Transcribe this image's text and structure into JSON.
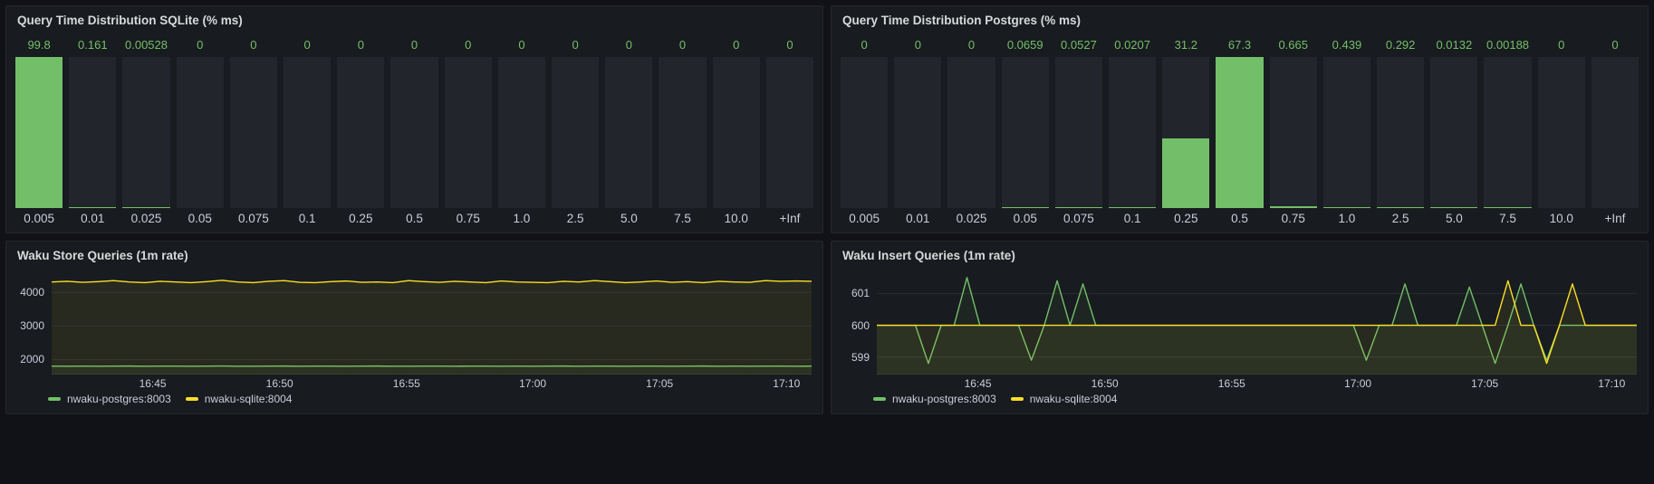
{
  "theme": {
    "background": "#111217",
    "panel_bg": "#181b1f",
    "panel_border": "#25272d",
    "text": "#ccccdc",
    "title_color": "#d8d9da",
    "green": "#73bf69",
    "yellow": "#fade2a",
    "bar_track": "#22262c",
    "grid": "rgba(204,204,220,0.10)",
    "axis_line": "rgba(204,204,220,0.16)"
  },
  "panels": {
    "sqlite": {
      "title": "Query Time Distribution SQLite (% ms)",
      "chart_data": {
        "type": "bar",
        "orientation": "vertical",
        "bar_color": "#73bf69",
        "categories": [
          "0.005",
          "0.01",
          "0.025",
          "0.05",
          "0.075",
          "0.1",
          "0.25",
          "0.5",
          "0.75",
          "1.0",
          "2.5",
          "5.0",
          "7.5",
          "10.0",
          "+Inf"
        ],
        "values": [
          99.8,
          0.161,
          0.00528,
          0,
          0,
          0,
          0,
          0,
          0,
          0,
          0,
          0,
          0,
          0,
          0
        ],
        "labels": [
          "99.8",
          "0.161",
          "0.00528",
          "0",
          "0",
          "0",
          "0",
          "0",
          "0",
          "0",
          "0",
          "0",
          "0",
          "0",
          "0"
        ]
      }
    },
    "postgres": {
      "title": "Query Time Distribution Postgres (% ms)",
      "chart_data": {
        "type": "bar",
        "orientation": "vertical",
        "bar_color": "#73bf69",
        "categories": [
          "0.005",
          "0.01",
          "0.025",
          "0.05",
          "0.075",
          "0.1",
          "0.25",
          "0.5",
          "0.75",
          "1.0",
          "2.5",
          "5.0",
          "7.5",
          "10.0",
          "+Inf"
        ],
        "values": [
          0,
          0,
          0,
          0.0659,
          0.0527,
          0.0207,
          31.2,
          67.3,
          0.665,
          0.439,
          0.292,
          0.0132,
          0.00188,
          0,
          0
        ],
        "labels": [
          "0",
          "0",
          "0",
          "0.0659",
          "0.0527",
          "0.0207",
          "31.2",
          "67.3",
          "0.665",
          "0.439",
          "0.292",
          "0.0132",
          "0.00188",
          "0",
          "0"
        ]
      }
    },
    "store": {
      "title": "Waku Store Queries (1m rate)",
      "chart_data": {
        "type": "line",
        "ylim": [
          1550,
          4680
        ],
        "y_ticks": [
          2000,
          3000,
          4000
        ],
        "x_ticks": [
          {
            "label": "16:45",
            "pos": 0.133
          },
          {
            "label": "16:50",
            "pos": 0.3
          },
          {
            "label": "16:55",
            "pos": 0.467
          },
          {
            "label": "17:00",
            "pos": 0.633
          },
          {
            "label": "17:05",
            "pos": 0.8
          },
          {
            "label": "17:10",
            "pos": 0.967
          }
        ],
        "legend_position": "bottom",
        "series": [
          {
            "name": "nwaku-postgres:8003",
            "color": "#73bf69",
            "values": [
              1800,
              1797,
              1802,
              1799,
              1801,
              1803,
              1798,
              1800,
              1802,
              1797,
              1800,
              1804,
              1799,
              1797,
              1801,
              1803,
              1798,
              1800,
              1802,
              1798,
              1800,
              1803,
              1799,
              1797,
              1801,
              1800,
              1798,
              1802,
              1800,
              1797,
              1802,
              1799,
              1800,
              1803,
              1798,
              1800,
              1801,
              1797,
              1800,
              1802,
              1798,
              1800,
              1803,
              1799,
              1800,
              1797,
              1801,
              1800,
              1799,
              1800
            ]
          },
          {
            "name": "nwaku-sqlite:8004",
            "color": "#fade2a",
            "values": [
              4310,
              4330,
              4300,
              4320,
              4350,
              4310,
              4290,
              4330,
              4310,
              4290,
              4320,
              4360,
              4310,
              4290,
              4330,
              4350,
              4300,
              4290,
              4320,
              4340,
              4300,
              4310,
              4290,
              4350,
              4320,
              4300,
              4330,
              4310,
              4290,
              4340,
              4310,
              4300,
              4290,
              4330,
              4310,
              4350,
              4320,
              4290,
              4310,
              4340,
              4300,
              4320,
              4290,
              4330,
              4310,
              4300,
              4350,
              4330,
              4340,
              4330
            ]
          }
        ]
      }
    },
    "insert": {
      "title": "Waku Insert Queries (1m rate)",
      "chart_data": {
        "type": "line",
        "ylim": [
          598.45,
          601.75
        ],
        "y_ticks": [
          599,
          600,
          601
        ],
        "x_ticks": [
          {
            "label": "16:45",
            "pos": 0.133
          },
          {
            "label": "16:50",
            "pos": 0.3
          },
          {
            "label": "16:55",
            "pos": 0.467
          },
          {
            "label": "17:00",
            "pos": 0.633
          },
          {
            "label": "17:05",
            "pos": 0.8
          },
          {
            "label": "17:10",
            "pos": 0.967
          }
        ],
        "legend_position": "bottom",
        "series": [
          {
            "name": "nwaku-postgres:8003",
            "color": "#73bf69",
            "values": [
              600,
              600,
              600,
              600,
              598.8,
              600,
              600,
              601.5,
              600,
              600,
              600,
              600,
              598.9,
              600,
              601.4,
              600,
              601.3,
              600,
              600,
              600,
              600,
              600,
              600,
              600,
              600,
              600,
              600,
              600,
              600,
              600,
              600,
              600,
              600,
              600,
              600,
              600,
              600,
              600,
              598.9,
              600,
              600,
              601.3,
              600,
              600,
              600,
              600,
              601.2,
              600,
              598.8,
              600,
              601.3,
              600,
              598.9,
              600,
              600,
              600,
              600,
              600,
              600,
              600
            ]
          },
          {
            "name": "nwaku-sqlite:8004",
            "color": "#fade2a",
            "values": [
              600,
              600,
              600,
              600,
              600,
              600,
              600,
              600,
              600,
              600,
              600,
              600,
              600,
              600,
              600,
              600,
              600,
              600,
              600,
              600,
              600,
              600,
              600,
              600,
              600,
              600,
              600,
              600,
              600,
              600,
              600,
              600,
              600,
              600,
              600,
              600,
              600,
              600,
              600,
              600,
              600,
              600,
              600,
              600,
              600,
              600,
              600,
              600,
              600,
              601.4,
              600,
              600,
              598.8,
              600,
              601.3,
              600,
              600,
              600,
              600,
              600
            ]
          }
        ]
      }
    }
  }
}
